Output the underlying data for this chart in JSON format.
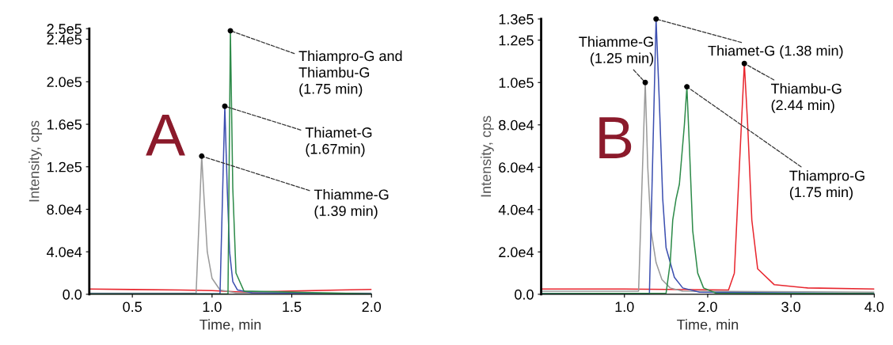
{
  "chart_data": [
    {
      "type": "line",
      "xlabel": "Time, min",
      "ylabel": "Intensity, cps",
      "xlim": [
        0.23,
        2.0
      ],
      "ylim": [
        0,
        250000
      ],
      "xticks": [
        0.5,
        {
          "value": 1.0,
          "label": "1.0"
        },
        1.5,
        {
          "value": 2.0,
          "label": "2.0"
        }
      ],
      "yticks": [
        {
          "value": 0,
          "label": "0.0"
        },
        {
          "value": 40000,
          "label": "4.0e4"
        },
        {
          "value": 80000,
          "label": "8.0e4"
        },
        {
          "value": 120000,
          "label": "1.2e5"
        },
        {
          "value": 160000,
          "label": "1.6e5"
        },
        {
          "value": 200000,
          "label": "2.0e5"
        },
        {
          "value": 240000,
          "label": "2.4e5"
        },
        {
          "value": 250000,
          "label": "2.5e5"
        }
      ],
      "grid": false,
      "marker": "none",
      "line_style": "solid",
      "series": [
        {
          "color": "#e8262e",
          "x": [
            0.23,
            0.5,
            0.8,
            1.0,
            1.2,
            1.5,
            1.8,
            2.0
          ],
          "values": [
            5000,
            4500,
            4000,
            3500,
            2000,
            3000,
            4000,
            4500
          ]
        },
        {
          "color": "#9a9a9a",
          "x": [
            0.23,
            0.9,
            0.935,
            0.95,
            0.97,
            1.0,
            1.05,
            1.15,
            2.0
          ],
          "values": [
            1000,
            1000,
            130000,
            90000,
            40000,
            15000,
            4000,
            1500,
            1000
          ]
        },
        {
          "color": "#3c4fb0",
          "x": [
            0.23,
            1.05,
            1.08,
            1.095,
            1.11,
            1.13,
            1.16,
            1.25,
            2.0
          ],
          "values": [
            500,
            500,
            177000,
            100000,
            40000,
            12000,
            4000,
            1500,
            500
          ]
        },
        {
          "color": "#2e8b4a",
          "x": [
            0.23,
            1.1,
            1.115,
            1.13,
            1.15,
            1.2,
            2.0
          ],
          "values": [
            300,
            300,
            248000,
            100000,
            20000,
            3000,
            300
          ]
        }
      ],
      "annotations": [
        "A",
        {
          "text": "Thiampro-G and\nThiambu-G\n(1.75 min)",
          "x": 1.115,
          "y": 248000
        },
        {
          "text": "Thiamet-G\n(1.67min)",
          "x": 1.08,
          "y": 177000
        },
        {
          "text": "Thiamme-G\n(1.39 min)",
          "x": 0.935,
          "y": 130000
        }
      ]
    },
    {
      "type": "line",
      "xlabel": "Time, min",
      "ylabel": "Intensity, cps",
      "xlim": [
        0,
        4.0
      ],
      "ylim": [
        0,
        130000
      ],
      "xticks": [
        {
          "value": 1.0,
          "label": "1.0"
        },
        {
          "value": 2.0,
          "label": "2.0"
        },
        {
          "value": 3.0,
          "label": "3.0"
        },
        {
          "value": 4.0,
          "label": "4.0"
        }
      ],
      "yticks": [
        {
          "value": 0,
          "label": "0.0"
        },
        {
          "value": 20000,
          "label": "2.0e4"
        },
        {
          "value": 40000,
          "label": "4.0e4"
        },
        {
          "value": 60000,
          "label": "6.0e4"
        },
        {
          "value": 80000,
          "label": "8.0e4"
        },
        {
          "value": 100000,
          "label": "1.0e5"
        },
        {
          "value": 120000,
          "label": "1.2e5"
        },
        {
          "value": 130000,
          "label": "1.3e5"
        }
      ],
      "grid": false,
      "marker": "none",
      "line_style": "solid",
      "series": [
        {
          "color": "#e8262e",
          "x": [
            0,
            1.0,
            2.25,
            2.32,
            2.38,
            2.44,
            2.48,
            2.53,
            2.6,
            2.8,
            3.2,
            4.0
          ],
          "values": [
            2500,
            2500,
            2000,
            10000,
            60000,
            109000,
            80000,
            35000,
            12000,
            4500,
            3000,
            2500
          ]
        },
        {
          "color": "#9a9a9a",
          "x": [
            0,
            1.17,
            1.25,
            1.28,
            1.32,
            1.38,
            1.45,
            1.55,
            1.7,
            4.0
          ],
          "values": [
            1500,
            1500,
            100000,
            60000,
            30000,
            15000,
            7000,
            3000,
            1500,
            1000
          ]
        },
        {
          "color": "#3c4fb0",
          "x": [
            0,
            1.3,
            1.38,
            1.42,
            1.46,
            1.5,
            1.6,
            1.7,
            1.9,
            4.0
          ],
          "values": [
            300,
            300,
            130000,
            90000,
            45000,
            22000,
            8000,
            3000,
            1000,
            300
          ]
        },
        {
          "color": "#2e8b4a",
          "x": [
            0,
            1.5,
            1.55,
            1.58,
            1.62,
            1.66,
            1.72,
            1.75,
            1.78,
            1.82,
            1.88,
            1.95,
            2.1,
            4.0
          ],
          "values": [
            300,
            500,
            15000,
            35000,
            45000,
            52000,
            80000,
            98000,
            70000,
            30000,
            10000,
            3000,
            500,
            300
          ]
        }
      ],
      "annotations": [
        "B",
        {
          "text": "Thiamme-G\n(1.25 min)",
          "x": 1.25,
          "y": 100000
        },
        {
          "text": "Thiamet-G (1.38 min)",
          "x": 1.38,
          "y": 130000
        },
        {
          "text": "Thiambu-G\n(2.44 min)",
          "x": 2.44,
          "y": 109000
        },
        {
          "text": "Thiampro-G\n(1.75 min)",
          "x": 1.75,
          "y": 98000
        }
      ]
    }
  ]
}
